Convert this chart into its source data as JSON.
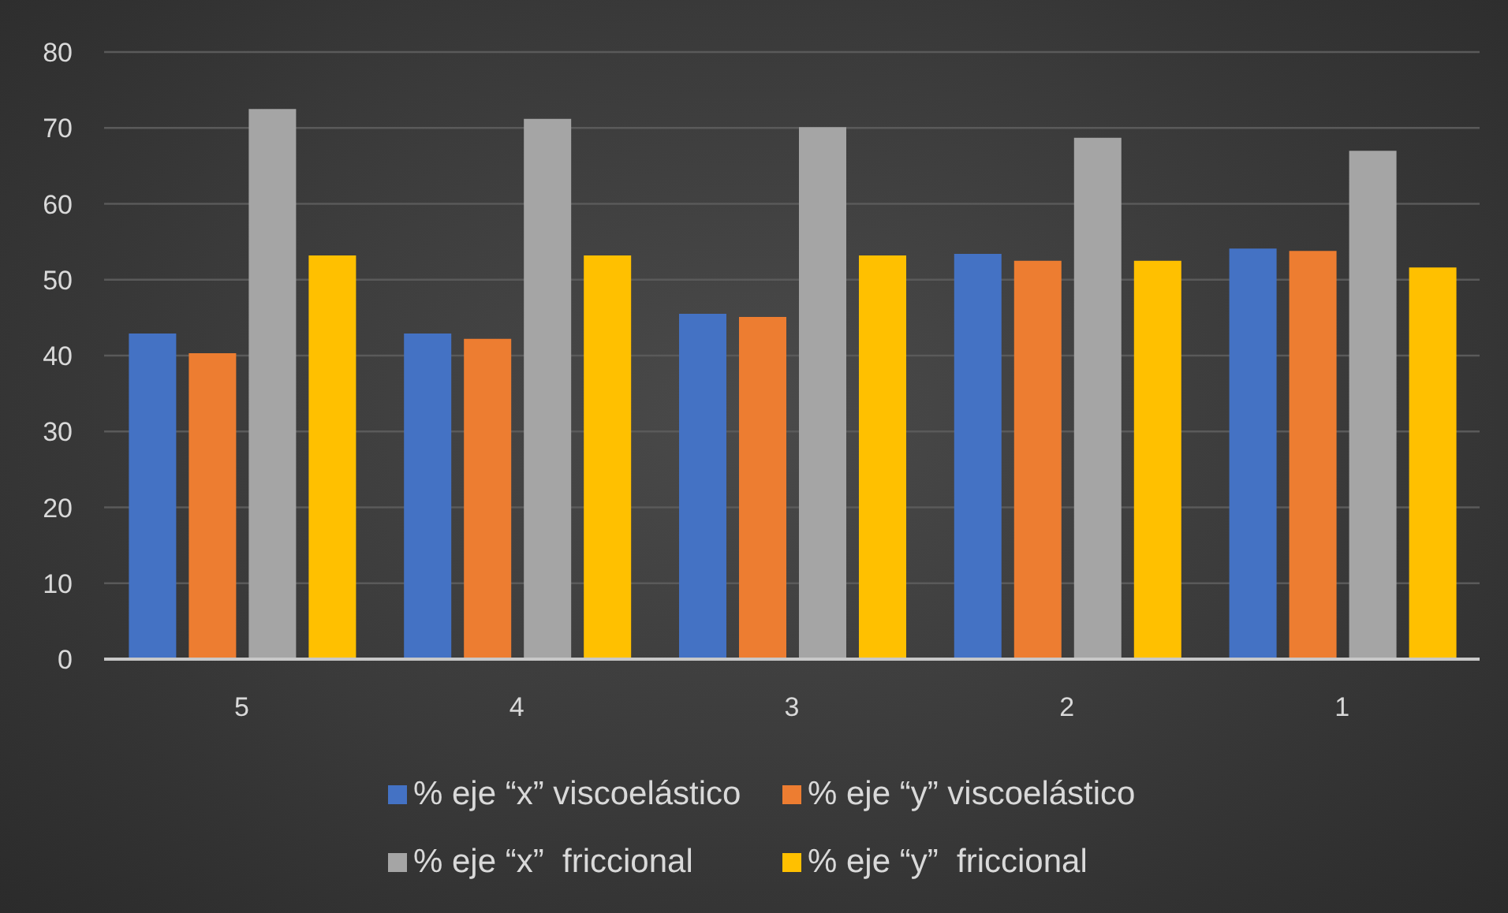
{
  "chart_data": {
    "type": "bar",
    "categories": [
      "5",
      "4",
      "3",
      "2",
      "1"
    ],
    "series": [
      {
        "name": "% eje “x” viscoelástico",
        "color": "#4472c4",
        "values": [
          42.9,
          42.9,
          45.5,
          53.4,
          54.1
        ]
      },
      {
        "name": "% eje “y” viscoelástico",
        "color": "#ed7d31",
        "values": [
          40.3,
          42.2,
          45.1,
          52.5,
          53.8
        ]
      },
      {
        "name": "% eje “x”  friccional",
        "color": "#a5a5a5",
        "values": [
          72.5,
          71.2,
          70.1,
          68.7,
          67.0
        ]
      },
      {
        "name": "% eje “y”  friccional",
        "color": "#ffc000",
        "values": [
          53.2,
          53.2,
          53.2,
          52.5,
          51.6
        ]
      }
    ],
    "ylim": [
      0,
      80
    ],
    "yticks": [
      0,
      10,
      20,
      30,
      40,
      50,
      60,
      70,
      80
    ],
    "grid": "y",
    "legend": "bottom"
  }
}
